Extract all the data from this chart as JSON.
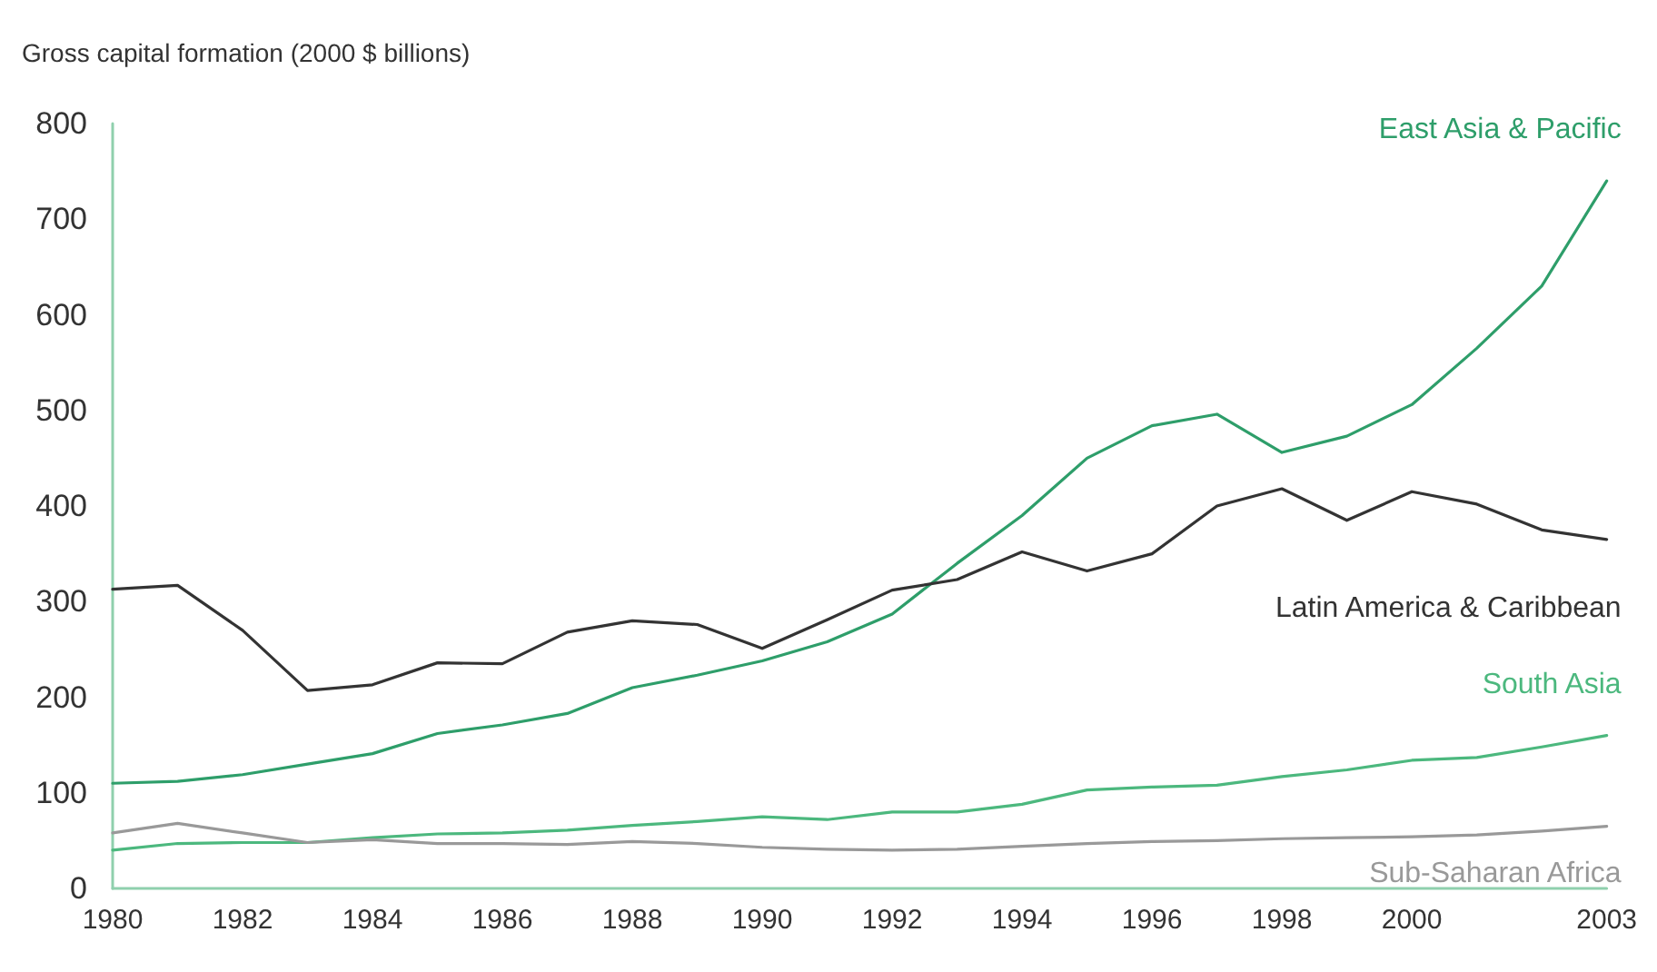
{
  "chart_data": {
    "type": "line",
    "ylabel": "Gross capital formation (2000 $ billions)",
    "x": [
      1980,
      1981,
      1982,
      1983,
      1984,
      1985,
      1986,
      1987,
      1988,
      1989,
      1990,
      1991,
      1992,
      1993,
      1994,
      1995,
      1996,
      1997,
      1998,
      1999,
      2000,
      2001,
      2002,
      2003
    ],
    "series": [
      {
        "name": "East Asia & Pacific",
        "color": "#2e9e6a",
        "values": [
          110,
          112,
          119,
          130,
          141,
          162,
          171,
          183,
          210,
          223,
          238,
          258,
          287,
          340,
          390,
          450,
          484,
          496,
          456,
          473,
          506,
          565,
          630,
          740
        ]
      },
      {
        "name": "Latin America & Caribbean",
        "color": "#333333",
        "values": [
          313,
          317,
          270,
          207,
          213,
          236,
          235,
          268,
          280,
          276,
          251,
          281,
          312,
          323,
          352,
          332,
          350,
          400,
          418,
          385,
          415,
          402,
          375,
          365
        ]
      },
      {
        "name": "South Asia",
        "color": "#4cb87e",
        "values": [
          40,
          47,
          48,
          48,
          53,
          57,
          58,
          61,
          66,
          70,
          75,
          72,
          80,
          80,
          88,
          103,
          106,
          108,
          117,
          124,
          134,
          137,
          148,
          160
        ]
      },
      {
        "name": "Sub-Saharan Africa",
        "color": "#999999",
        "values": [
          58,
          68,
          58,
          48,
          51,
          47,
          47,
          46,
          49,
          47,
          43,
          41,
          40,
          41,
          44,
          47,
          49,
          50,
          52,
          53,
          54,
          56,
          60,
          65
        ]
      }
    ],
    "xlim": [
      1980,
      2003
    ],
    "xticks": [
      1980,
      1982,
      1984,
      1986,
      1988,
      1990,
      1992,
      1994,
      1996,
      1998,
      2000,
      2003
    ],
    "ylim": [
      0,
      800
    ],
    "yticks": [
      0,
      100,
      200,
      300,
      400,
      500,
      600,
      700,
      800
    ],
    "grid": false,
    "legend": false,
    "marker": "none",
    "line_style": "solid"
  }
}
